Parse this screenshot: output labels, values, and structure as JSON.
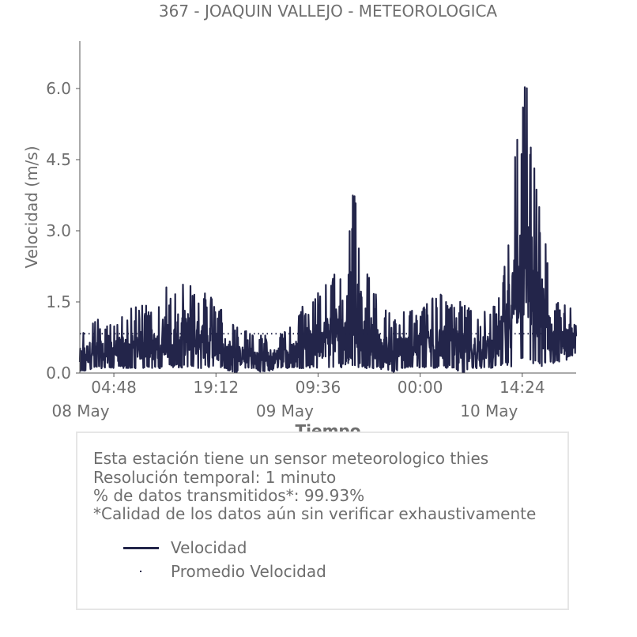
{
  "chart_data": {
    "type": "line",
    "title": "367 - JOAQUIN VALLEJO - METEOROLOGICA",
    "xlabel": "Tiempo",
    "ylabel": "Velocidad (m/s)",
    "ylim": [
      0,
      7.0
    ],
    "xlim": [
      "2024-05-08T00:00",
      "2024-05-10T22:00"
    ],
    "x_ticks": [
      {
        "time": "2024-05-08T04:48",
        "label": "04:48",
        "date_label": "08 May"
      },
      {
        "time": "2024-05-08T19:12",
        "label": "19:12",
        "date_label": ""
      },
      {
        "time": "2024-05-09T09:36",
        "label": "09:36",
        "date_label": "09 May"
      },
      {
        "time": "2024-05-10T00:00",
        "label": "00:00",
        "date_label": ""
      },
      {
        "time": "2024-05-10T14:24",
        "label": "14:24",
        "date_label": "10 May"
      }
    ],
    "y_ticks": [
      "0.0",
      "1.5",
      "3.0",
      "4.5",
      "6.0"
    ],
    "y_tick_values": [
      0,
      1.5,
      3.0,
      4.5,
      6.0
    ],
    "grid": false,
    "series": [
      {
        "name": "Velocidad",
        "color": "#23254a",
        "style": "solid",
        "x": [
          "2024-05-08T00:00",
          "2024-05-08T02:00",
          "2024-05-08T04:00",
          "2024-05-08T06:00",
          "2024-05-08T08:00",
          "2024-05-08T09:00",
          "2024-05-08T10:00",
          "2024-05-08T11:00",
          "2024-05-08T12:00",
          "2024-05-08T13:00",
          "2024-05-08T14:00",
          "2024-05-08T15:00",
          "2024-05-08T16:00",
          "2024-05-08T17:00",
          "2024-05-08T18:00",
          "2024-05-08T20:00",
          "2024-05-08T22:00",
          "2024-05-09T00:00",
          "2024-05-09T02:00",
          "2024-05-09T04:00",
          "2024-05-09T06:00",
          "2024-05-09T08:00",
          "2024-05-09T10:00",
          "2024-05-09T11:00",
          "2024-05-09T12:00",
          "2024-05-09T13:00",
          "2024-05-09T14:00",
          "2024-05-09T15:00",
          "2024-05-09T16:00",
          "2024-05-09T18:00",
          "2024-05-09T20:00",
          "2024-05-09T22:00",
          "2024-05-10T00:00",
          "2024-05-10T02:00",
          "2024-05-10T04:00",
          "2024-05-10T06:00",
          "2024-05-10T08:00",
          "2024-05-10T10:00",
          "2024-05-10T11:00",
          "2024-05-10T12:00",
          "2024-05-10T13:00",
          "2024-05-10T14:00",
          "2024-05-10T15:00",
          "2024-05-10T16:00",
          "2024-05-10T17:00",
          "2024-05-10T18:00",
          "2024-05-10T19:00",
          "2024-05-10T20:00",
          "2024-05-10T21:00",
          "2024-05-10T22:00"
        ],
        "y": [
          0.9,
          1.2,
          1.0,
          1.3,
          1.4,
          1.5,
          1.6,
          1.3,
          2.3,
          1.5,
          2.2,
          2.3,
          1.8,
          1.9,
          1.7,
          1.4,
          1.0,
          0.9,
          0.8,
          0.9,
          1.0,
          1.6,
          1.8,
          2.1,
          2.4,
          2.7,
          4.0,
          3.8,
          2.5,
          1.6,
          1.2,
          1.4,
          1.3,
          1.8,
          1.6,
          1.5,
          1.3,
          1.3,
          1.7,
          2.5,
          4.0,
          5.8,
          6.4,
          4.5,
          3.7,
          2.6,
          1.6,
          1.4,
          1.6,
          1.5
        ],
        "y_min": [
          0.0,
          0.1,
          0.1,
          0.1,
          0.1,
          0.1,
          0.1,
          0.1,
          0.1,
          0.1,
          0.1,
          0.1,
          0.1,
          0.1,
          0.1,
          0.1,
          0.0,
          0.1,
          0.0,
          0.1,
          0.1,
          0.1,
          0.1,
          0.1,
          0.1,
          0.1,
          0.2,
          0.1,
          0.1,
          0.1,
          0.0,
          0.1,
          0.1,
          0.1,
          0.1,
          0.0,
          0.1,
          0.1,
          0.1,
          0.1,
          0.1,
          0.2,
          0.3,
          0.1,
          0.1,
          0.1,
          0.2,
          0.2,
          0.3,
          0.4
        ]
      },
      {
        "name": "Promedio Velocidad",
        "color": "#23254a",
        "style": "dotted",
        "value": 0.83
      }
    ]
  },
  "info": {
    "line1": "Esta estación tiene un sensor meteorologico thies",
    "line2": "Resolución temporal: 1 minuto",
    "line3": "% de datos transmitidos*: 99.93%",
    "line4": "*Calidad de los datos aún sin verificar exhaustivamente"
  },
  "legend": {
    "velocidad": "Velocidad",
    "promedio": "Promedio Velocidad"
  }
}
